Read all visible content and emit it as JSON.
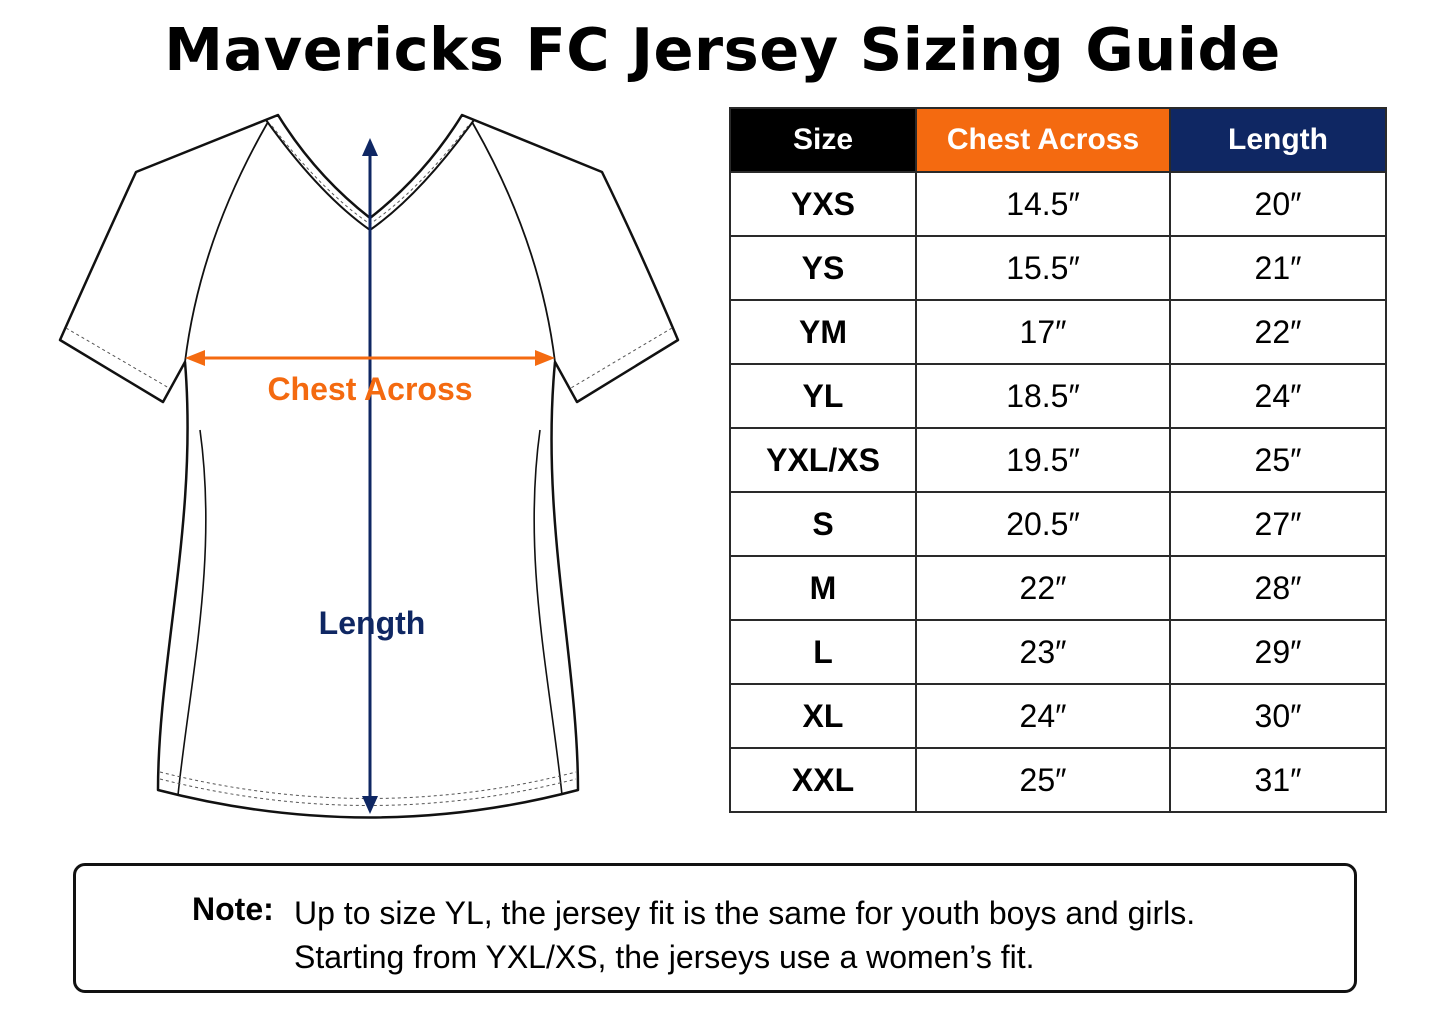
{
  "title": "Mavericks FC Jersey Sizing Guide",
  "diagram": {
    "chest_label": "Chest Across",
    "length_label": "Length"
  },
  "colors": {
    "chest": "#f46a10",
    "length": "#0f2763",
    "size_header": "#000000"
  },
  "table": {
    "headers": {
      "size": "Size",
      "chest": "Chest Across",
      "length": "Length"
    },
    "rows": [
      {
        "size": "YXS",
        "chest": "14.5″",
        "length": "20″"
      },
      {
        "size": "YS",
        "chest": "15.5″",
        "length": "21″"
      },
      {
        "size": "YM",
        "chest": "17″",
        "length": "22″"
      },
      {
        "size": "YL",
        "chest": "18.5″",
        "length": "24″"
      },
      {
        "size": "YXL/XS",
        "chest": "19.5″",
        "length": "25″"
      },
      {
        "size": "S",
        "chest": "20.5″",
        "length": "27″"
      },
      {
        "size": "M",
        "chest": "22″",
        "length": "28″"
      },
      {
        "size": "L",
        "chest": "23″",
        "length": "29″"
      },
      {
        "size": "XL",
        "chest": "24″",
        "length": "30″"
      },
      {
        "size": "XXL",
        "chest": "25″",
        "length": "31″"
      }
    ]
  },
  "note": {
    "label": "Note:",
    "line1": "Up to size YL, the jersey fit is the same for youth boys and girls.",
    "line2": "Starting from YXL/XS, the jerseys use a women’s fit."
  }
}
